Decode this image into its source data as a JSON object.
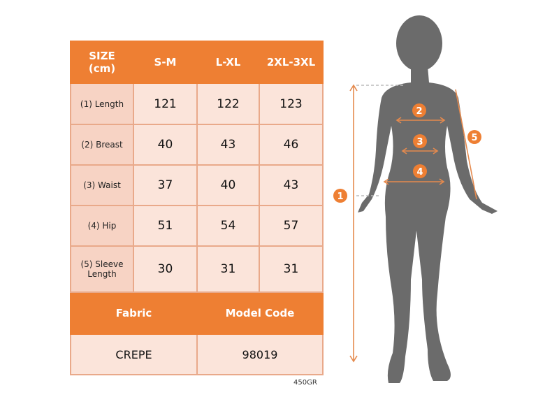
{
  "table": {
    "header": [
      "SIZE\n(cm)",
      "S-M",
      "L-XL",
      "2XL-3XL"
    ],
    "header_line1": "SIZE",
    "header_line2": "(cm)",
    "rows": [
      {
        "label": "(1) Length",
        "values": [
          "121",
          "122",
          "123"
        ]
      },
      {
        "label": "(2) Breast",
        "values": [
          "40",
          "43",
          "46"
        ]
      },
      {
        "label": "(3) Waist",
        "values": [
          "37",
          "40",
          "43"
        ]
      },
      {
        "label": "(4) Hip",
        "values": [
          "51",
          "54",
          "57"
        ]
      },
      {
        "label_line1": "(5) Sleeve",
        "label_line2": "Length",
        "values": [
          "30",
          "31",
          "31"
        ]
      }
    ],
    "fabric_label": "Fabric",
    "model_code_label": "Model Code",
    "fabric_value": "CREPE",
    "model_code_value": "98019"
  },
  "weight_note": "450GR",
  "figure": {
    "markers": [
      "1",
      "2",
      "3",
      "4",
      "5"
    ]
  },
  "colors": {
    "accent": "#ee7f33",
    "cell": "#fbe4da",
    "label_cell": "#f7d3c4",
    "silhouette": "#6b6b6b"
  }
}
